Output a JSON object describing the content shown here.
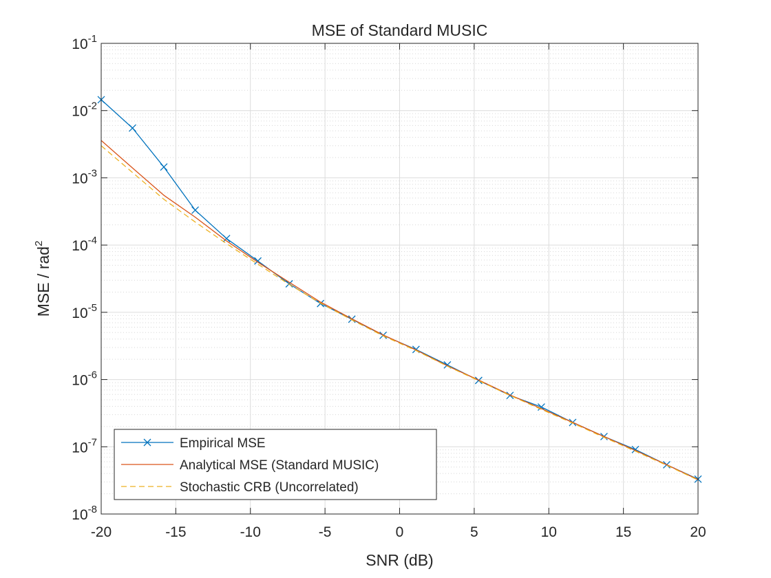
{
  "chart_data": {
    "type": "line",
    "title": "MSE of Standard MUSIC",
    "xlabel": "SNR (dB)",
    "ylabel_main": "MSE / rad",
    "ylabel_sup": "2",
    "xlim": [
      -20,
      20
    ],
    "ylim": [
      1e-08,
      0.1
    ],
    "yscale": "log",
    "grid": true,
    "minor_grid": true,
    "legend_placement": "bottom-left",
    "x_ticks": [
      -20,
      -15,
      -10,
      -5,
      0,
      5,
      10,
      15,
      20
    ],
    "x_tick_labels": [
      "-20",
      "-15",
      "-10",
      "-5",
      "0",
      "5",
      "10",
      "15",
      "20"
    ],
    "y_ticks": [
      1e-08,
      1e-07,
      1e-06,
      1e-05,
      0.0001,
      0.001,
      0.01,
      0.1
    ],
    "y_tick_labels": [
      {
        "base": "10",
        "exp": "-8"
      },
      {
        "base": "10",
        "exp": "-7"
      },
      {
        "base": "10",
        "exp": "-6"
      },
      {
        "base": "10",
        "exp": "-5"
      },
      {
        "base": "10",
        "exp": "-4"
      },
      {
        "base": "10",
        "exp": "-3"
      },
      {
        "base": "10",
        "exp": "-2"
      },
      {
        "base": "10",
        "exp": "-1"
      }
    ],
    "x": [
      -20,
      -17.9,
      -15.8,
      -13.7,
      -11.6,
      -9.5,
      -7.4,
      -5.3,
      -3.2,
      -1.1,
      1.1,
      3.2,
      5.3,
      7.4,
      9.5,
      11.6,
      13.7,
      15.8,
      17.9,
      20
    ],
    "series": [
      {
        "name": "Empirical MSE",
        "color": "#0072BD",
        "style": "solid",
        "marker": "x",
        "values": [
          0.0145,
          0.0055,
          0.00145,
          0.00033,
          0.000125,
          5.8e-05,
          2.65e-05,
          1.35e-05,
          7.9e-06,
          4.55e-06,
          2.8e-06,
          1.65e-06,
          9.7e-07,
          5.8e-07,
          3.9e-07,
          2.3e-07,
          1.42e-07,
          9.1e-08,
          5.4e-08,
          3.3e-08
        ]
      },
      {
        "name": "Analytical MSE (Standard MUSIC)",
        "color": "#D95319",
        "style": "solid",
        "marker": "none",
        "values": [
          0.0036,
          0.0014,
          0.00055,
          0.00026,
          0.000115,
          5.55e-05,
          2.8e-05,
          1.42e-05,
          8e-06,
          4.6e-06,
          2.75e-06,
          1.6e-06,
          9.8e-07,
          5.9e-07,
          3.7e-07,
          2.3e-07,
          1.42e-07,
          8.8e-08,
          5.4e-08,
          3.25e-08
        ]
      },
      {
        "name": "Stochastic CRB (Uncorrelated)",
        "color": "#EDB120",
        "style": "dashed",
        "marker": "none",
        "values": [
          0.003,
          0.0012,
          0.00048,
          0.00022,
          0.000105,
          5.2e-05,
          2.6e-05,
          1.37e-05,
          7.7e-06,
          4.45e-06,
          2.7e-06,
          1.58e-06,
          9.6e-07,
          5.8e-07,
          3.6e-07,
          2.25e-07,
          1.38e-07,
          8.6e-08,
          5.3e-08,
          3.2e-08
        ]
      }
    ]
  }
}
